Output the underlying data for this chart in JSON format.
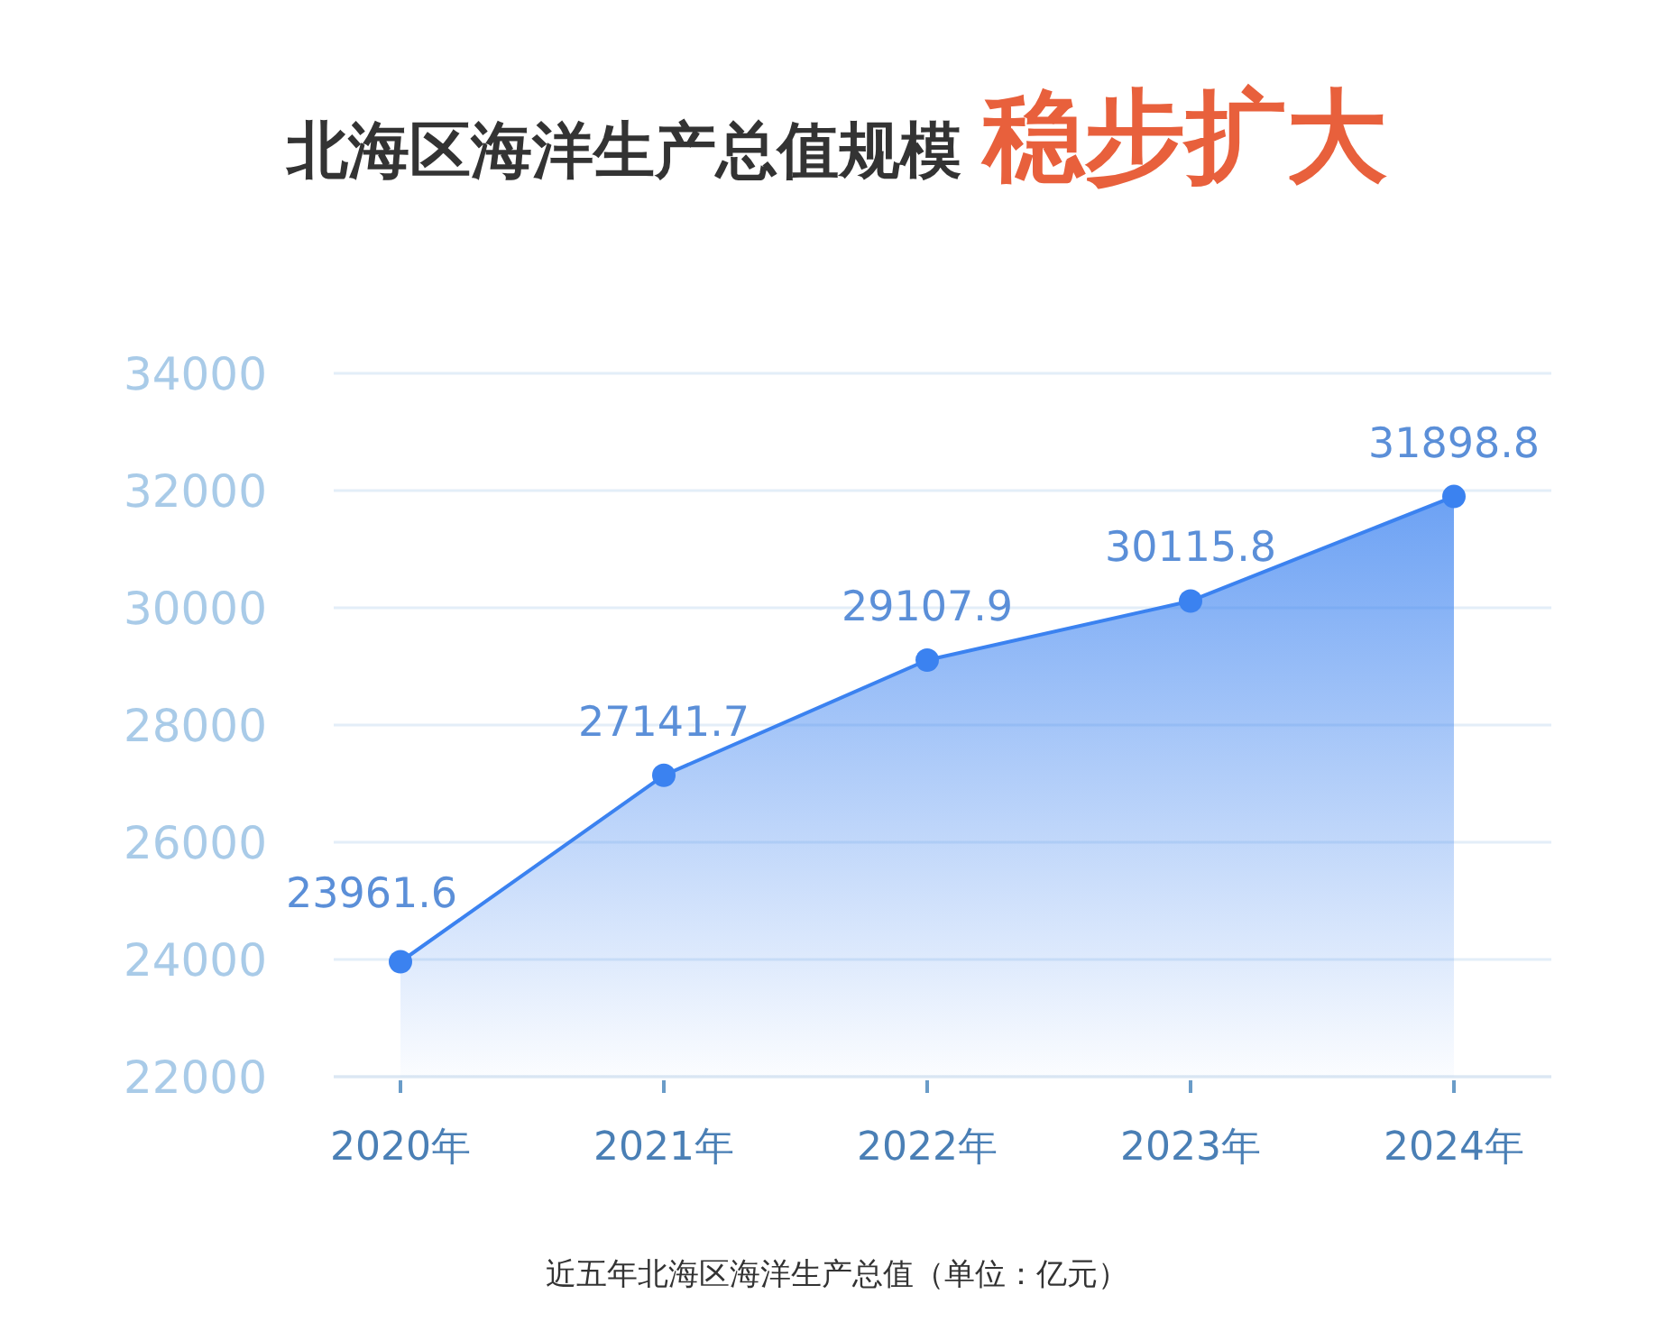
{
  "chart_data": {
    "type": "area",
    "title": "北海区海洋生产总值规模 稳步扩大",
    "categories": [
      "2020年",
      "2021年",
      "2022年",
      "2023年",
      "2024年"
    ],
    "series": [
      {
        "color": "#3b82f0",
        "values": [
          23961.6,
          27141.7,
          29107.9,
          30115.8,
          31898.8
        ]
      }
    ],
    "ylim": [
      22000,
      34000
    ],
    "yticks": [
      22000,
      24000,
      26000,
      28000,
      30000,
      32000,
      34000
    ],
    "grid": "y",
    "marker": "circle",
    "line_style": "solid",
    "data_labels": true,
    "annotations": [
      "近五年北海区海洋生产总值（单位：亿元）"
    ]
  }
}
